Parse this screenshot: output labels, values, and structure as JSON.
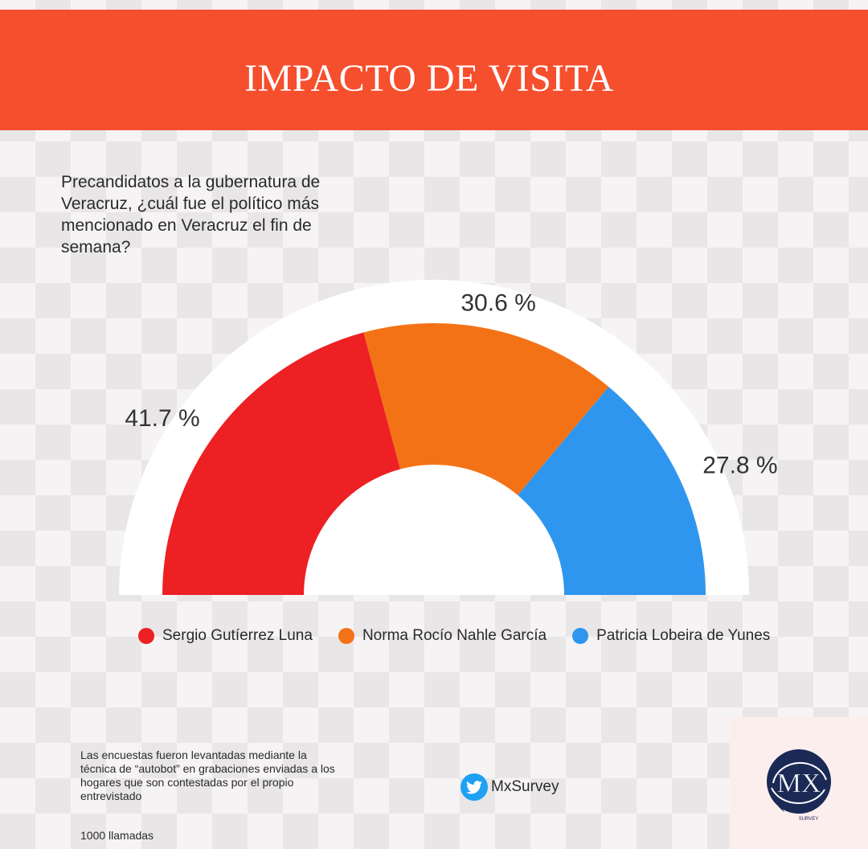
{
  "header": {
    "title": "IMPACTO DE VISITA",
    "bg_color": "#f54f2e"
  },
  "question": "Precandidatos a la gubernatura de Veracruz, ¿cuál fue el político más mencionado en Veracruz el fin de semana?",
  "chart_data": {
    "type": "pie",
    "variant": "half-donut",
    "title": "",
    "series": [
      {
        "name": "Sergio Gutíerrez Luna",
        "value": 41.7,
        "label": "41.7 %",
        "color": "#ed2024"
      },
      {
        "name": "Norma Rocío Nahle García",
        "value": 30.6,
        "label": "30.6 %",
        "color": "#f47216"
      },
      {
        "name": "Patricia Lobeira de Yunes",
        "value": 27.8,
        "label": "27.8 %",
        "color": "#2e96ee"
      }
    ],
    "legend_position": "bottom"
  },
  "footnote": {
    "method": "Las encuestas fueron levantadas mediante la técnica de “autobot” en grabaciones enviadas a los hogares que son contestadas por el propio entrevistado",
    "sample": "1000 llamadas"
  },
  "social": {
    "handle": "MxSurvey",
    "icon": "twitter-bird-icon"
  },
  "logo": {
    "text": "MX",
    "subtext": "SURVEY"
  }
}
